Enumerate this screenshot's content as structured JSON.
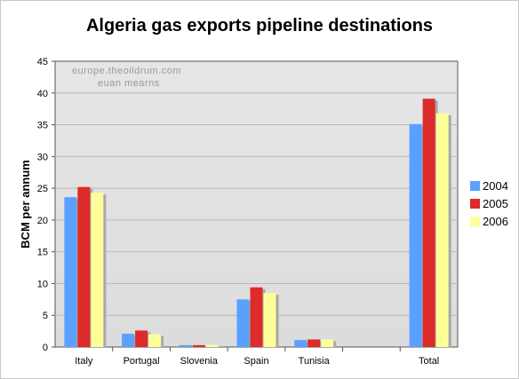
{
  "chart_data": {
    "type": "bar",
    "title": "Algeria gas exports pipeline destinations",
    "ylabel": "BCM per annum",
    "xlabel": "",
    "ylim": [
      0,
      45
    ],
    "yticks": [
      0,
      5,
      10,
      15,
      20,
      25,
      30,
      35,
      40,
      45
    ],
    "categories": [
      "Italy",
      "Portugal",
      "Slovenia",
      "Spain",
      "Tunisia",
      "",
      "Total"
    ],
    "series": [
      {
        "name": "2004",
        "color": "#5aa0ff",
        "values": [
          23.6,
          2.1,
          0.3,
          7.5,
          1.1,
          null,
          35.1
        ]
      },
      {
        "name": "2005",
        "color": "#dd2a2a",
        "values": [
          25.2,
          2.6,
          0.3,
          9.4,
          1.2,
          null,
          39.1
        ]
      },
      {
        "name": "2006",
        "color": "#ffff9a",
        "values": [
          24.3,
          2.0,
          0.3,
          8.5,
          1.2,
          null,
          36.8
        ]
      }
    ],
    "grid": true,
    "legend_position": "right",
    "watermark": [
      "europe.theoildrum.com",
      "euan mearns"
    ]
  }
}
